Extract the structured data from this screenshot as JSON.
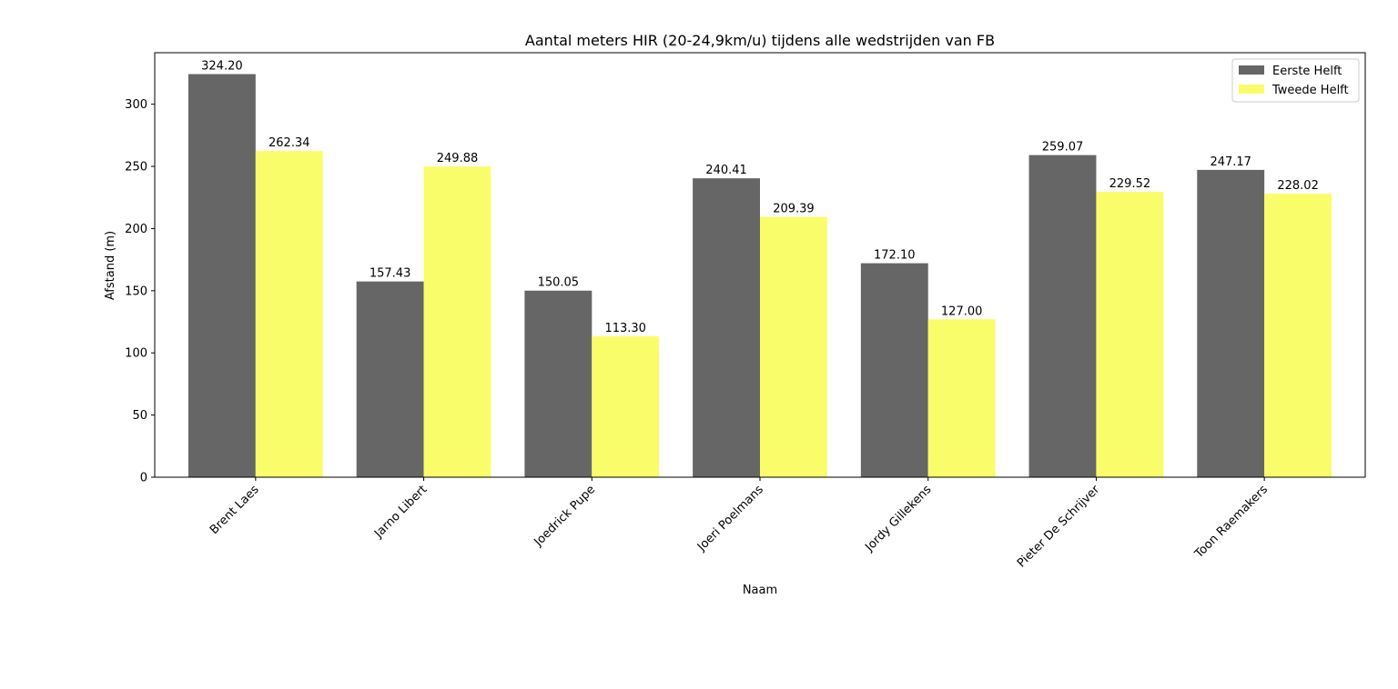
{
  "chart_data": {
    "type": "bar",
    "title": "Aantal meters HIR (20-24,9km/u) tijdens alle wedstrijden van FB",
    "xlabel": "Naam",
    "ylabel": "Afstand (m)",
    "categories": [
      "Brent Laes",
      "Jarno Libert",
      "Joedrick Pupe",
      "Joeri Poelmans",
      "Jordy Gillekens",
      "Pieter De Schrijver",
      "Toon Raemakers"
    ],
    "series": [
      {
        "name": "Eerste Helft",
        "color": "#666666",
        "values": [
          324.2,
          157.43,
          150.05,
          240.41,
          172.1,
          259.07,
          247.17
        ],
        "labels": [
          "324.20",
          "157.43",
          "150.05",
          "240.41",
          "172.10",
          "259.07",
          "247.17"
        ]
      },
      {
        "name": "Tweede Helft",
        "color": "#fafd6a",
        "values": [
          262.34,
          249.88,
          113.3,
          209.39,
          127.0,
          229.52,
          228.02
        ],
        "labels": [
          "262.34",
          "249.88",
          "113.30",
          "209.39",
          "127.00",
          "229.52",
          "228.02"
        ]
      }
    ],
    "ylim": [
      0,
      341.4
    ],
    "yticks": [
      0,
      50,
      100,
      150,
      200,
      250,
      300
    ],
    "grid": false,
    "legend": "top-right"
  }
}
